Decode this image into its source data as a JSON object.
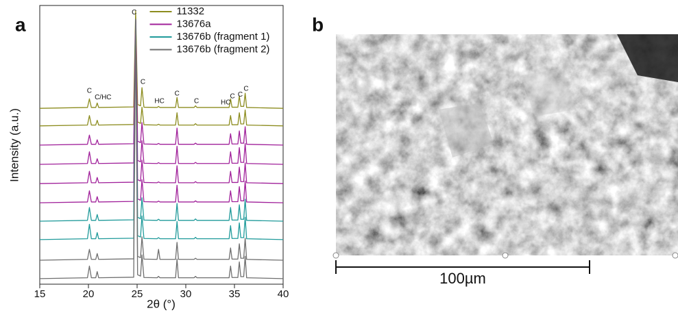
{
  "panel_labels": [
    "a",
    "b"
  ],
  "chart_data": {
    "type": "line",
    "xlabel": "2θ (°)",
    "ylabel": "Intensity (a.u.)",
    "xlim": [
      15,
      40
    ],
    "xticks": [
      15,
      20,
      25,
      30,
      35,
      40
    ],
    "ylim": [
      0,
      100
    ],
    "legend": "top",
    "x": [
      15,
      19.9,
      20.1,
      20.3,
      20.75,
      20.9,
      21.05,
      24.65,
      24.85,
      25.05,
      25.35,
      25.5,
      25.7,
      27.05,
      27.2,
      27.35,
      28.95,
      29.1,
      29.25,
      30.85,
      31.0,
      31.15,
      34.45,
      34.6,
      34.75,
      35.35,
      35.5,
      35.65,
      35.95,
      36.1,
      36.25,
      40
    ],
    "series": [
      {
        "name": "11332",
        "color": "#8c8c1e",
        "traces": [
          {
            "values": [
              63.1,
              63.4,
              66.5,
              63.4,
              63.4,
              65,
              63.4,
              63.6,
              98,
              64.5,
              64,
              70.5,
              63.5,
              63.4,
              63.8,
              63.4,
              63.4,
              67,
              63.4,
              63.4,
              64,
              63.4,
              63.4,
              66.5,
              63.5,
              63.5,
              67.5,
              63.8,
              63.8,
              68.5,
              63.4,
              63.1
            ]
          },
          {
            "values": [
              56.8,
              57.1,
              60.5,
              57.1,
              57.1,
              58.8,
              57.1,
              57.3,
              96,
              58.2,
              57.7,
              63.5,
              57.2,
              57.1,
              57.4,
              57.1,
              57.1,
              61.5,
              57.1,
              57.1,
              57.6,
              57.1,
              57.1,
              60.5,
              57.2,
              57.2,
              61.5,
              57.5,
              57.5,
              62.5,
              57.1,
              56.8
            ]
          }
        ]
      },
      {
        "name": "13676a",
        "color": "#a0209a",
        "traces": [
          {
            "values": [
              49.9,
              50.2,
              53.5,
              50.2,
              50.2,
              51.8,
              50.2,
              50.4,
              95,
              51.3,
              50.8,
              58,
              50.3,
              50.2,
              50.5,
              50.2,
              50.2,
              56,
              50.2,
              50.2,
              50.6,
              50.2,
              50.2,
              54,
              50.3,
              50.3,
              55,
              50.6,
              50.6,
              56.5,
              50.2,
              49.9
            ]
          },
          {
            "values": [
              43,
              43.3,
              47.5,
              43.3,
              43.3,
              45,
              43.3,
              43.5,
              95,
              44.4,
              43.9,
              51.5,
              43.4,
              43.3,
              43.6,
              43.3,
              43.3,
              49.5,
              43.3,
              43.3,
              43.7,
              43.3,
              43.3,
              47.5,
              43.4,
              43.4,
              49,
              43.7,
              43.7,
              50.5,
              43.3,
              43
            ]
          },
          {
            "values": [
              36.1,
              36.4,
              40.5,
              36.4,
              36.4,
              38.3,
              36.4,
              36.6,
              95,
              37.5,
              37,
              44.5,
              36.5,
              36.4,
              36.7,
              36.4,
              36.4,
              42.5,
              36.4,
              36.4,
              36.8,
              36.4,
              36.4,
              40.5,
              36.5,
              36.5,
              42,
              36.8,
              36.8,
              43.5,
              36.4,
              36.1
            ]
          },
          {
            "values": [
              29.2,
              29.5,
              33.5,
              29.5,
              29.5,
              31.4,
              29.5,
              29.7,
              95,
              30.6,
              30.1,
              37.5,
              29.6,
              29.5,
              29.8,
              29.5,
              29.5,
              35.5,
              29.5,
              29.5,
              29.9,
              29.5,
              29.5,
              33.5,
              29.6,
              29.6,
              35,
              29.9,
              29.9,
              37,
              29.5,
              29.2
            ]
          }
        ]
      },
      {
        "name": "13676b (fragment 1)",
        "color": "#1f9a9a",
        "traces": [
          {
            "values": [
              22.6,
              22.9,
              27.5,
              22.9,
              22.9,
              25,
              22.9,
              23.1,
              95,
              24,
              23.5,
              31,
              23,
              22.9,
              23.3,
              22.9,
              22.9,
              29,
              22.9,
              22.9,
              23.4,
              22.9,
              22.9,
              27.5,
              23,
              23,
              28.5,
              23.3,
              23.3,
              30.5,
              22.9,
              22.6
            ]
          },
          {
            "values": [
              16,
              16.3,
              21.5,
              16.3,
              16.3,
              18.5,
              16.3,
              16.5,
              95,
              17.4,
              16.9,
              24.5,
              16.4,
              16.3,
              16.7,
              16.3,
              16.3,
              22.5,
              16.3,
              16.3,
              16.8,
              16.3,
              16.3,
              21,
              16.4,
              16.4,
              22,
              16.7,
              16.7,
              24,
              16.3,
              16
            ]
          }
        ]
      },
      {
        "name": "13676b (fragment 2)",
        "color": "#6e6e6e",
        "traces": [
          {
            "values": [
              8.6,
              8.9,
              12.5,
              8.9,
              8.9,
              11,
              8.9,
              9.1,
              95,
              10,
              9.5,
              17,
              9,
              8.9,
              12.5,
              8.9,
              8.9,
              15,
              8.9,
              8.9,
              9.3,
              8.9,
              8.9,
              13,
              9,
              9,
              14.5,
              9.3,
              9.3,
              16.5,
              8.9,
              8.6
            ]
          },
          {
            "values": [
              2,
              2.3,
              6.5,
              2.3,
              2.3,
              4.5,
              2.3,
              2.5,
              95,
              3.4,
              2.9,
              10.5,
              2.4,
              2.3,
              2.8,
              2.3,
              2.3,
              9,
              2.3,
              2.3,
              2.8,
              2.3,
              2.3,
              6.5,
              2.4,
              2.4,
              8,
              2.7,
              2.7,
              10,
              2.3,
              2
            ]
          }
        ]
      }
    ],
    "annotations": [
      {
        "text": "C",
        "x": 20.1,
        "y": 69.3
      },
      {
        "text": "C/HC",
        "x": 21.5,
        "y": 67
      },
      {
        "text": "C",
        "x": 24.7,
        "y": 97.5
      },
      {
        "text": "C",
        "x": 25.6,
        "y": 72.5
      },
      {
        "text": "HC",
        "x": 27.3,
        "y": 65.6
      },
      {
        "text": "C",
        "x": 29.1,
        "y": 68.3
      },
      {
        "text": "C",
        "x": 31.1,
        "y": 65.6
      },
      {
        "text": "HC",
        "x": 34.1,
        "y": 65.1
      },
      {
        "text": "C",
        "x": 34.8,
        "y": 67.3
      },
      {
        "text": "C",
        "x": 35.6,
        "y": 68
      },
      {
        "text": "C",
        "x": 36.2,
        "y": 70
      }
    ]
  },
  "image_panel": {
    "scale_bar": "100µm"
  }
}
